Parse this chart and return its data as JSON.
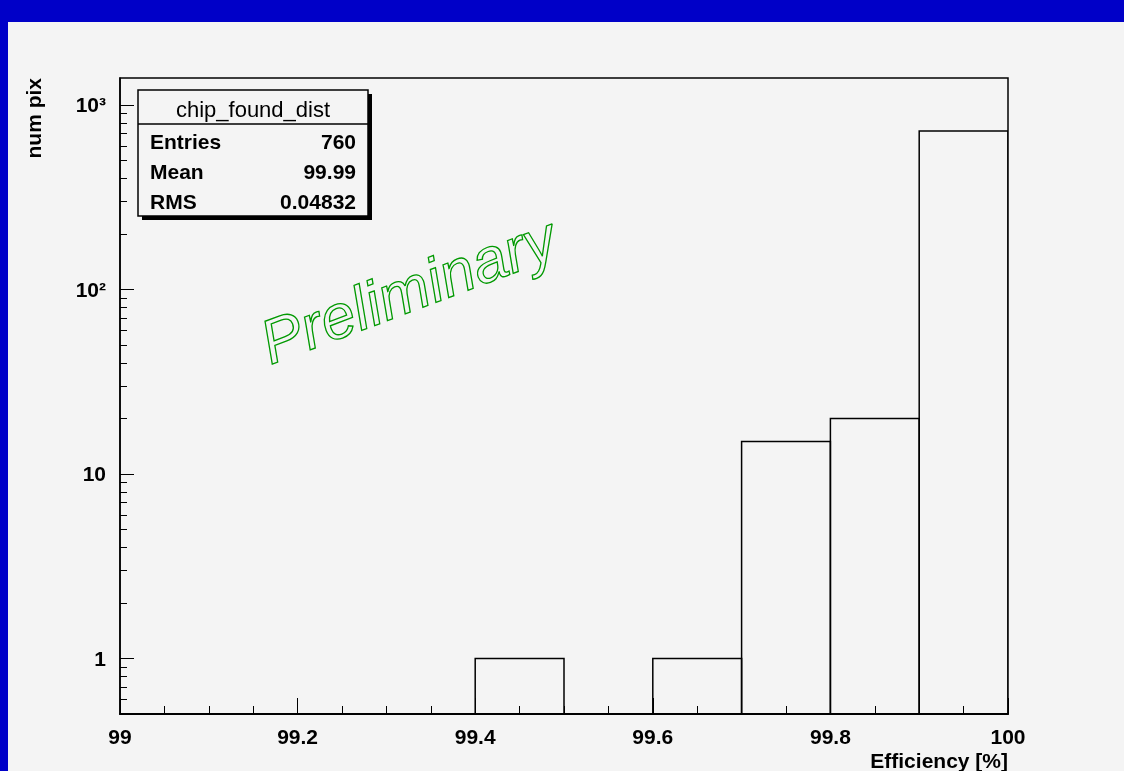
{
  "chart_data": {
    "type": "histogram",
    "xlabel": "Efficiency [%]",
    "ylabel": "num pix",
    "bins": [
      99,
      99.1,
      99.2,
      99.3,
      99.4,
      99.5,
      99.6,
      99.7,
      99.8,
      99.9,
      100
    ],
    "values": [
      null,
      null,
      null,
      null,
      1,
      null,
      1,
      15,
      20,
      723
    ],
    "color": "#000000",
    "log": "y",
    "xlim": [
      99,
      100
    ],
    "xticks": [
      99,
      99.2,
      99.4,
      99.6,
      99.8,
      100
    ],
    "ylim": [
      0.5,
      1400
    ],
    "yticks": [
      1,
      10,
      {
        "value": 100,
        "label": "10²"
      },
      {
        "value": 1000,
        "label": "10³"
      }
    ],
    "grid": false,
    "annotations": [
      "chip_found_dist",
      "Entries 760",
      "Mean 99.99",
      "RMS 0.04832",
      "Preliminary"
    ]
  }
}
